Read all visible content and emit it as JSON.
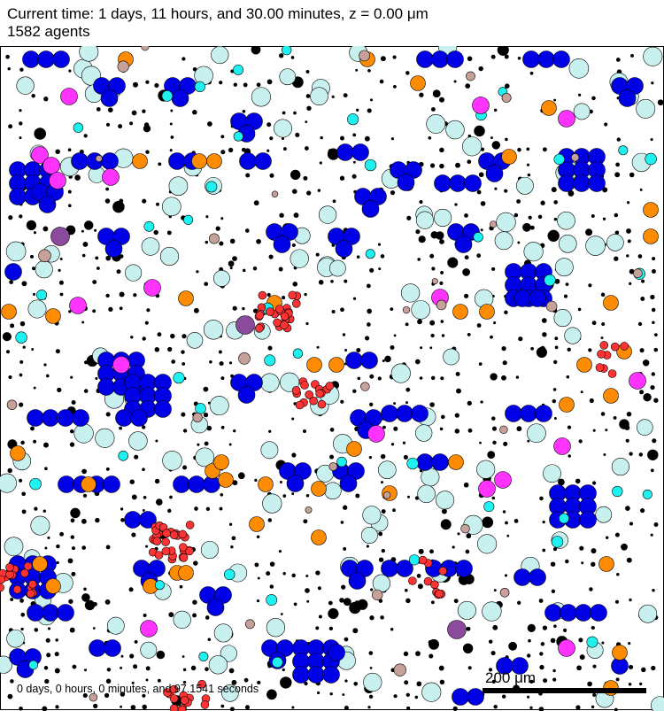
{
  "header": {
    "time_line": "Current time: 1 days, 11 hours, and 30.00 minutes, z = 0.00 μm",
    "count_line": "1582 agents"
  },
  "footer": {
    "elapsed": "0 days, 0 hours, 0 minutes, and 97.1541 seconds",
    "scale_label": "200 μm"
  },
  "palette": {
    "blue": "#0000e6",
    "light_cyan": "#c8f0ef",
    "cyan": "#1ff0f0",
    "orange": "#ff8c00",
    "magenta": "#ff33ff",
    "purple": "#8b4a9c",
    "red": "#ff3333",
    "tan": "#c8a09a",
    "black": "#000000"
  },
  "agent_types": [
    "blue",
    "light_cyan",
    "cyan",
    "orange",
    "magenta",
    "purple",
    "red",
    "tan",
    "black"
  ]
}
